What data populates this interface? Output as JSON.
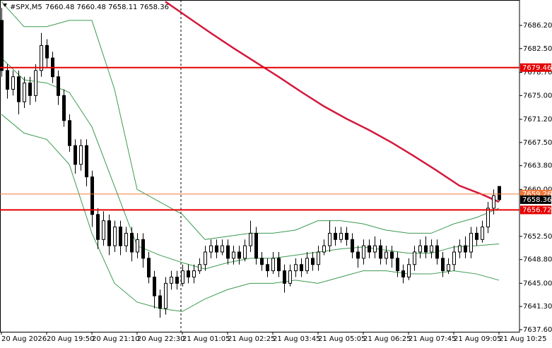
{
  "chart_data": {
    "type": "candlestick",
    "title": "#SPX,M5",
    "subtitle": "7660.48 7660.48 7658.11 7658.36",
    "ylim": [
      7637.26,
      7690.26
    ],
    "yticks": [
      {
        "value": 7686.2,
        "label": "7686.20"
      },
      {
        "value": 7682.5,
        "label": "7682.50"
      },
      {
        "value": 7678.7,
        "label": "7678.70"
      },
      {
        "value": 7675.0,
        "label": "7675.00"
      },
      {
        "value": 7671.2,
        "label": "7671.20"
      },
      {
        "value": 7667.5,
        "label": "7667.50"
      },
      {
        "value": 7663.8,
        "label": "7663.80"
      },
      {
        "value": 7660.0,
        "label": "7660.00"
      },
      {
        "value": 7652.5,
        "label": "7652.50"
      },
      {
        "value": 7648.8,
        "label": "7648.80"
      },
      {
        "value": 7645.0,
        "label": "7645.00"
      },
      {
        "value": 7641.3,
        "label": "7641.30"
      },
      {
        "value": 7637.6,
        "label": "7637.60"
      }
    ],
    "xticks": [
      {
        "value": 0,
        "label": "20 Aug 2026"
      },
      {
        "value": 8,
        "label": "20 Aug 19:50"
      },
      {
        "value": 16,
        "label": "20 Aug 21:10"
      },
      {
        "value": 24,
        "label": "20 Aug 22:30"
      },
      {
        "value": 32,
        "label": "21 Aug 01:05"
      },
      {
        "value": 40,
        "label": "21 Aug 02:25"
      },
      {
        "value": 48,
        "label": "21 Aug 03:45"
      },
      {
        "value": 56,
        "label": "21 Aug 05:05"
      },
      {
        "value": 64,
        "label": "21 Aug 06:25"
      },
      {
        "value": 72,
        "label": "21 Aug 07:45"
      },
      {
        "value": 80,
        "label": "21 Aug 09:05"
      },
      {
        "value": 88,
        "label": "21 Aug 10:25"
      }
    ],
    "up_color": "#ffffff",
    "down_color": "#000000",
    "candles": [
      [
        7687,
        7689,
        7678,
        7679
      ],
      [
        7679,
        7680,
        7674.5,
        7676
      ],
      [
        7676,
        7679,
        7675,
        7678
      ],
      [
        7678,
        7679,
        7672,
        7674
      ],
      [
        7674,
        7678,
        7673,
        7677
      ],
      [
        7677,
        7678,
        7673.5,
        7675
      ],
      [
        7675,
        7680,
        7674,
        7679
      ],
      [
        7679,
        7685,
        7678,
        7683
      ],
      [
        7683,
        7684,
        7679.5,
        7681
      ],
      [
        7681,
        7682,
        7677,
        7678
      ],
      [
        7678,
        7679,
        7673.5,
        7675
      ],
      [
        7675,
        7676,
        7670,
        7671
      ],
      [
        7671,
        7672,
        7666,
        7667
      ],
      [
        7667,
        7668,
        7662.5,
        7664
      ],
      [
        7664,
        7668,
        7663,
        7667
      ],
      [
        7667,
        7668,
        7660.5,
        7662
      ],
      [
        7662,
        7663,
        7654,
        7656
      ],
      [
        7656,
        7657,
        7650.5,
        7652
      ],
      [
        7652,
        7656.5,
        7651,
        7655
      ],
      [
        7655,
        7656,
        7649.5,
        7651
      ],
      [
        7651,
        7655,
        7650,
        7654
      ],
      [
        7654,
        7655,
        7649.5,
        7651
      ],
      [
        7651,
        7654,
        7650,
        7653
      ],
      [
        7653,
        7654,
        7648.5,
        7650
      ],
      [
        7650,
        7653,
        7649,
        7652
      ],
      [
        7652,
        7653,
        7647.5,
        7649
      ],
      [
        7649,
        7650,
        7645,
        7646
      ],
      [
        7646,
        7647,
        7641,
        7643
      ],
      [
        7643,
        7644,
        7639.5,
        7641
      ],
      [
        7641,
        7646,
        7640,
        7645
      ],
      [
        7645,
        7647,
        7644,
        7646
      ],
      [
        7646,
        7647,
        7644,
        7645
      ],
      [
        7645,
        7648,
        7644.5,
        7647
      ],
      [
        7647,
        7648,
        7645,
        7646
      ],
      [
        7646,
        7648,
        7645,
        7647
      ],
      [
        7647,
        7649,
        7646.5,
        7648
      ],
      [
        7648,
        7651,
        7647,
        7650
      ],
      [
        7650,
        7652,
        7649,
        7651
      ],
      [
        7651,
        7652,
        7649,
        7650
      ],
      [
        7650,
        7652,
        7649.5,
        7651
      ],
      [
        7651,
        7652,
        7648,
        7649
      ],
      [
        7649,
        7651,
        7648,
        7650
      ],
      [
        7650,
        7651,
        7648,
        7649
      ],
      [
        7649,
        7652,
        7648.5,
        7651
      ],
      [
        7651,
        7655,
        7650,
        7653
      ],
      [
        7653,
        7654,
        7648,
        7649
      ],
      [
        7649,
        7650,
        7647,
        7648
      ],
      [
        7648,
        7649,
        7646,
        7647
      ],
      [
        7647,
        7650,
        7646.5,
        7649
      ],
      [
        7649,
        7650,
        7646,
        7647
      ],
      [
        7647,
        7648,
        7643.5,
        7645
      ],
      [
        7645,
        7648,
        7644.5,
        7647
      ],
      [
        7647,
        7649,
        7646,
        7648
      ],
      [
        7648,
        7649,
        7646,
        7647
      ],
      [
        7647,
        7650,
        7646.5,
        7649
      ],
      [
        7649,
        7650,
        7647,
        7648
      ],
      [
        7648,
        7651,
        7647,
        7650
      ],
      [
        7650,
        7652,
        7649.5,
        7651
      ],
      [
        7651,
        7655,
        7650,
        7653
      ],
      [
        7653,
        7654,
        7651,
        7652
      ],
      [
        7652,
        7654,
        7651.5,
        7653
      ],
      [
        7653,
        7654,
        7651,
        7652
      ],
      [
        7652,
        7653,
        7649,
        7650
      ],
      [
        7650,
        7651,
        7647.5,
        7649
      ],
      [
        7649,
        7652,
        7648,
        7651
      ],
      [
        7651,
        7652,
        7649,
        7650
      ],
      [
        7650,
        7652.5,
        7649,
        7651
      ],
      [
        7651,
        7652,
        7648,
        7649
      ],
      [
        7649,
        7651,
        7648,
        7650
      ],
      [
        7650,
        7651,
        7647.5,
        7649
      ],
      [
        7649,
        7650,
        7646,
        7647
      ],
      [
        7647,
        7648,
        7645,
        7646
      ],
      [
        7646,
        7649,
        7645.5,
        7648
      ],
      [
        7648,
        7651,
        7647,
        7650
      ],
      [
        7650,
        7652,
        7649,
        7651
      ],
      [
        7651,
        7652.5,
        7649,
        7650
      ],
      [
        7650,
        7652,
        7649,
        7651
      ],
      [
        7651,
        7652,
        7648,
        7649
      ],
      [
        7649,
        7650,
        7646,
        7647
      ],
      [
        7647,
        7649,
        7646.5,
        7648
      ],
      [
        7648,
        7651,
        7647,
        7650
      ],
      [
        7650,
        7652,
        7649,
        7651
      ],
      [
        7651,
        7652.5,
        7649,
        7650
      ],
      [
        7650,
        7654,
        7649,
        7653
      ],
      [
        7653,
        7654,
        7651,
        7652
      ],
      [
        7652,
        7655,
        7651.5,
        7654
      ],
      [
        7654,
        7658,
        7653,
        7657
      ],
      [
        7657,
        7660,
        7656,
        7659
      ],
      [
        7660.48,
        7660.48,
        7658.11,
        7658.36
      ]
    ],
    "lines": [
      {
        "color": "#3c9a50",
        "x": [
          0,
          4,
          8,
          12,
          16,
          20,
          24,
          28,
          32,
          36,
          40,
          44,
          48,
          52,
          56,
          60,
          64,
          68,
          72,
          76,
          80,
          84,
          88
        ],
        "values": [
          7690,
          7686,
          7686,
          7687,
          7687,
          7676,
          7660,
          7658,
          7656,
          7652,
          7652.5,
          7653,
          7653,
          7653.5,
          7655,
          7655,
          7654.5,
          7653.5,
          7653,
          7653,
          7654.5,
          7655.5,
          7657
        ]
      },
      {
        "color": "#3c9a50",
        "x": [
          0,
          4,
          8,
          12,
          16,
          20,
          24,
          28,
          32,
          36,
          40,
          44,
          48,
          52,
          56,
          60,
          64,
          68,
          72,
          76,
          80,
          84,
          88
        ],
        "values": [
          7681,
          7677.5,
          7677,
          7675.5,
          7670,
          7660.5,
          7651,
          7649.5,
          7648.3,
          7647.3,
          7648.3,
          7649,
          7649,
          7649.5,
          7650,
          7650.5,
          7650.8,
          7650.3,
          7649.8,
          7649.8,
          7650.8,
          7651,
          7651.3
        ]
      },
      {
        "color": "#3c9a50",
        "x": [
          0,
          4,
          8,
          12,
          16,
          20,
          24,
          28,
          32,
          36,
          40,
          44,
          48,
          52,
          56,
          60,
          64,
          68,
          72,
          76,
          80,
          84,
          88
        ],
        "values": [
          7672,
          7669,
          7668,
          7664,
          7653,
          7645,
          7642,
          7641,
          7640.5,
          7642.5,
          7644,
          7645,
          7645,
          7645.5,
          7645,
          7646,
          7647,
          7647,
          7646.5,
          7646.5,
          7647,
          7646.5,
          7645.5
        ]
      },
      {
        "color": "#d4183c",
        "x": [
          29,
          33,
          37,
          41,
          45,
          49,
          53,
          57,
          61,
          65,
          69,
          73,
          77,
          81,
          85,
          88
        ],
        "values": [
          7690,
          7687.5,
          7685,
          7682.6,
          7680.3,
          7678,
          7675.6,
          7673.3,
          7671.3,
          7669.5,
          7667.5,
          7665.3,
          7663,
          7660.6,
          7659.2,
          7658
        ]
      }
    ],
    "levels": [
      {
        "value": 7679.46,
        "color": "#e60000"
      },
      {
        "value": 7659.26,
        "color": "#f0783c"
      },
      {
        "value": 7656.72,
        "color": "#e60000"
      }
    ],
    "last_color": "#000000"
  }
}
